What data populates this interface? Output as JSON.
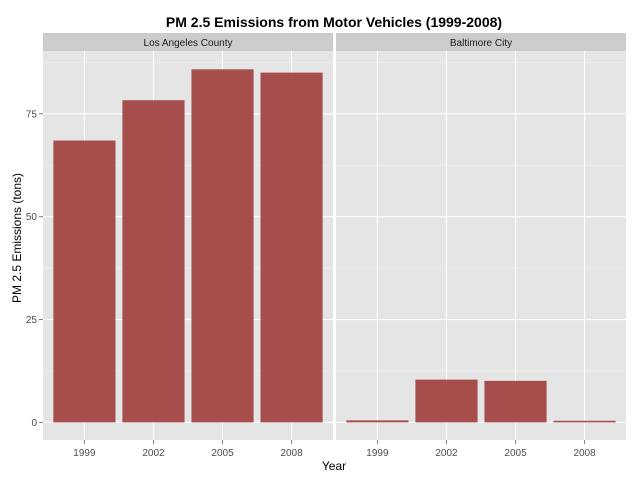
{
  "chart_data": {
    "type": "bar",
    "title": "PM 2.5 Emissions from Motor Vehicles (1999-2008)",
    "xlabel": "Year",
    "ylabel": "PM 2.5 Emissions (tons)",
    "categories": [
      "1999",
      "2002",
      "2005",
      "2008"
    ],
    "ylim": [
      0,
      90
    ],
    "yticks": [
      0,
      25,
      50,
      75
    ],
    "grid": true,
    "bar_color": "#a0413f",
    "panel_background": "#e5e5e5",
    "strip_background": "#cccccc",
    "facets": [
      {
        "name": "Los Angeles County",
        "values": [
          68.5,
          78.3,
          85.8,
          85.0
        ]
      },
      {
        "name": "Baltimore City",
        "values": [
          0.5,
          10.4,
          10.1,
          0.4
        ]
      }
    ]
  }
}
